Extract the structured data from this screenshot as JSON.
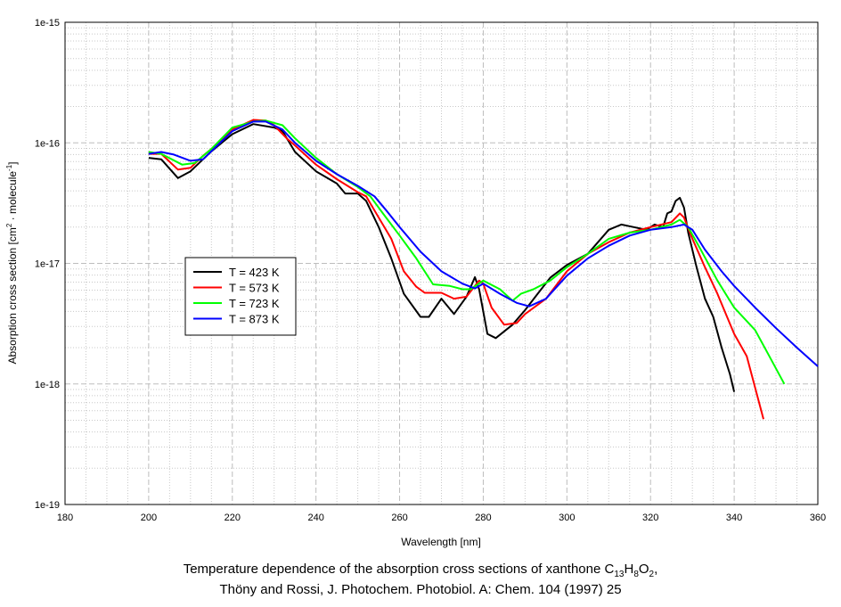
{
  "chart_data": {
    "type": "line",
    "title": "",
    "xlabel": "Wavelength [nm]",
    "ylabel_parts": {
      "main": "Absorption cross section [cm",
      "sup1": "2",
      "mid": " · molecule",
      "sup2": "-1",
      "end": "]"
    },
    "xlim": [
      180,
      360
    ],
    "ylim": [
      1e-19,
      1e-15
    ],
    "yscale": "log",
    "grid": true,
    "legend_position": "center-left",
    "x_ticks": [
      "180",
      "200",
      "220",
      "240",
      "260",
      "280",
      "300",
      "320",
      "340",
      "360"
    ],
    "y_ticks": [
      "1e-19",
      "1e-18",
      "1e-17",
      "1e-16",
      "1e-15"
    ],
    "series": [
      {
        "name": "T = 423 K",
        "color": "#000000",
        "points": [
          [
            200,
            7.5e-17
          ],
          [
            203,
            7.3e-17
          ],
          [
            207,
            5.1e-17
          ],
          [
            210,
            5.8e-17
          ],
          [
            213,
            7.3e-17
          ],
          [
            215,
            8.5e-17
          ],
          [
            220,
            1.18e-16
          ],
          [
            225,
            1.43e-16
          ],
          [
            230,
            1.34e-16
          ],
          [
            232,
            1.25e-16
          ],
          [
            235,
            8.4e-17
          ],
          [
            240,
            5.8e-17
          ],
          [
            245,
            4.6e-17
          ],
          [
            247,
            3.8e-17
          ],
          [
            250,
            3.8e-17
          ],
          [
            252,
            3.3e-17
          ],
          [
            255,
            2e-17
          ],
          [
            258,
            1.1e-17
          ],
          [
            261,
            5.6e-18
          ],
          [
            265,
            3.6e-18
          ],
          [
            267,
            3.6e-18
          ],
          [
            270,
            5.1e-18
          ],
          [
            273,
            3.8e-18
          ],
          [
            276,
            5.3e-18
          ],
          [
            278,
            7.7e-18
          ],
          [
            279,
            6.1e-18
          ],
          [
            281,
            2.6e-18
          ],
          [
            283,
            2.4e-18
          ],
          [
            287,
            3.1e-18
          ],
          [
            290,
            4.1e-18
          ],
          [
            293,
            5.6e-18
          ],
          [
            296,
            7.6e-18
          ],
          [
            300,
            9.7e-18
          ],
          [
            305,
            1.2e-17
          ],
          [
            310,
            1.9e-17
          ],
          [
            313,
            2.1e-17
          ],
          [
            316,
            2e-17
          ],
          [
            319,
            1.9e-17
          ],
          [
            321,
            2.1e-17
          ],
          [
            323,
            2e-17
          ],
          [
            324,
            2.6e-17
          ],
          [
            325,
            2.7e-17
          ],
          [
            326,
            3.3e-17
          ],
          [
            327,
            3.5e-17
          ],
          [
            328,
            2.9e-17
          ],
          [
            329,
            1.8e-17
          ],
          [
            331,
            9.3e-18
          ],
          [
            333,
            5.1e-18
          ],
          [
            335,
            3.6e-18
          ],
          [
            337,
            2e-18
          ],
          [
            339,
            1.2e-18
          ],
          [
            340,
            8.6e-19
          ]
        ]
      },
      {
        "name": "T = 573 K",
        "color": "#ff0000",
        "points": [
          [
            200,
            8.1e-17
          ],
          [
            203,
            8.1e-17
          ],
          [
            207,
            6e-17
          ],
          [
            210,
            6.2e-17
          ],
          [
            213,
            7.8e-17
          ],
          [
            215,
            8.9e-17
          ],
          [
            220,
            1.29e-16
          ],
          [
            225,
            1.55e-16
          ],
          [
            228,
            1.53e-16
          ],
          [
            230,
            1.4e-16
          ],
          [
            233,
            1.09e-16
          ],
          [
            235,
            9.5e-17
          ],
          [
            240,
            6.6e-17
          ],
          [
            245,
            5e-17
          ],
          [
            250,
            3.9e-17
          ],
          [
            252,
            3.6e-17
          ],
          [
            255,
            2.4e-17
          ],
          [
            258,
            1.6e-17
          ],
          [
            261,
            8.6e-18
          ],
          [
            264,
            6.4e-18
          ],
          [
            266,
            5.7e-18
          ],
          [
            270,
            5.7e-18
          ],
          [
            273,
            5.1e-18
          ],
          [
            276,
            5.3e-18
          ],
          [
            279,
            7.2e-18
          ],
          [
            280,
            6.8e-18
          ],
          [
            282,
            4.3e-18
          ],
          [
            285,
            3.1e-18
          ],
          [
            288,
            3.2e-18
          ],
          [
            290,
            3.8e-18
          ],
          [
            295,
            5.1e-18
          ],
          [
            300,
            8.6e-18
          ],
          [
            305,
            1.2e-17
          ],
          [
            310,
            1.5e-17
          ],
          [
            315,
            1.8e-17
          ],
          [
            320,
            2e-17
          ],
          [
            325,
            2.2e-17
          ],
          [
            327,
            2.6e-17
          ],
          [
            328,
            2.4e-17
          ],
          [
            330,
            1.6e-17
          ],
          [
            333,
            9.3e-18
          ],
          [
            336,
            5.6e-18
          ],
          [
            340,
            2.6e-18
          ],
          [
            343,
            1.7e-18
          ],
          [
            347,
            5.1e-19
          ]
        ]
      },
      {
        "name": "T = 723 K",
        "color": "#00ff00",
        "points": [
          [
            200,
            8.4e-17
          ],
          [
            203,
            8.1e-17
          ],
          [
            208,
            6.6e-17
          ],
          [
            211,
            6.8e-17
          ],
          [
            215,
            8.9e-17
          ],
          [
            220,
            1.34e-16
          ],
          [
            225,
            1.5e-16
          ],
          [
            228,
            1.53e-16
          ],
          [
            232,
            1.4e-16
          ],
          [
            235,
            1.09e-16
          ],
          [
            240,
            7.5e-17
          ],
          [
            245,
            5.5e-17
          ],
          [
            250,
            4.3e-17
          ],
          [
            253,
            3.6e-17
          ],
          [
            256,
            2.6e-17
          ],
          [
            260,
            1.7e-17
          ],
          [
            264,
            1.1e-17
          ],
          [
            268,
            6.7e-18
          ],
          [
            272,
            6.5e-18
          ],
          [
            275,
            6.1e-18
          ],
          [
            277,
            6.1e-18
          ],
          [
            280,
            7.2e-18
          ],
          [
            284,
            6.1e-18
          ],
          [
            287,
            4.9e-18
          ],
          [
            289,
            5.6e-18
          ],
          [
            292,
            6.1e-18
          ],
          [
            296,
            7.2e-18
          ],
          [
            300,
            9.3e-18
          ],
          [
            305,
            1.2e-17
          ],
          [
            310,
            1.6e-17
          ],
          [
            315,
            1.8e-17
          ],
          [
            320,
            1.9e-17
          ],
          [
            325,
            2.1e-17
          ],
          [
            327,
            2.3e-17
          ],
          [
            329,
            2e-17
          ],
          [
            332,
            1.3e-17
          ],
          [
            336,
            7.2e-18
          ],
          [
            340,
            4.3e-18
          ],
          [
            345,
            2.8e-18
          ],
          [
            348,
            1.8e-18
          ],
          [
            352,
            1e-18
          ]
        ]
      },
      {
        "name": "T = 873 K",
        "color": "#0000ff",
        "points": [
          [
            200,
            8.1e-17
          ],
          [
            203,
            8.4e-17
          ],
          [
            206,
            8e-17
          ],
          [
            210,
            7.1e-17
          ],
          [
            213,
            7.3e-17
          ],
          [
            216,
            9.2e-17
          ],
          [
            220,
            1.25e-16
          ],
          [
            225,
            1.5e-16
          ],
          [
            228,
            1.5e-16
          ],
          [
            232,
            1.29e-16
          ],
          [
            235,
            1e-16
          ],
          [
            240,
            7.1e-17
          ],
          [
            245,
            5.5e-17
          ],
          [
            250,
            4.4e-17
          ],
          [
            254,
            3.6e-17
          ],
          [
            257,
            2.7e-17
          ],
          [
            260,
            2e-17
          ],
          [
            265,
            1.25e-17
          ],
          [
            270,
            8.6e-18
          ],
          [
            275,
            6.8e-18
          ],
          [
            278,
            6.2e-18
          ],
          [
            280,
            6.8e-18
          ],
          [
            284,
            5.6e-18
          ],
          [
            288,
            4.7e-18
          ],
          [
            291,
            4.4e-18
          ],
          [
            295,
            5.1e-18
          ],
          [
            300,
            7.9e-18
          ],
          [
            305,
            1.1e-17
          ],
          [
            310,
            1.4e-17
          ],
          [
            315,
            1.7e-17
          ],
          [
            320,
            1.9e-17
          ],
          [
            325,
            2e-17
          ],
          [
            328,
            2.1e-17
          ],
          [
            330,
            1.9e-17
          ],
          [
            333,
            1.3e-17
          ],
          [
            337,
            8.6e-18
          ],
          [
            340,
            6.5e-18
          ],
          [
            345,
            4.3e-18
          ],
          [
            350,
            2.9e-18
          ],
          [
            355,
            2e-18
          ],
          [
            360,
            1.4e-18
          ]
        ]
      }
    ]
  },
  "caption": {
    "line1_pre": "Temperature dependence of the absorption cross sections of xanthone C",
    "sub1": "13",
    "h": "H",
    "sub2": "8",
    "o": "O",
    "sub3": "2",
    "line1_post": ",",
    "line2": "Thöny and Rossi, J. Photochem. Photobiol. A: Chem. 104 (1997) 25"
  }
}
